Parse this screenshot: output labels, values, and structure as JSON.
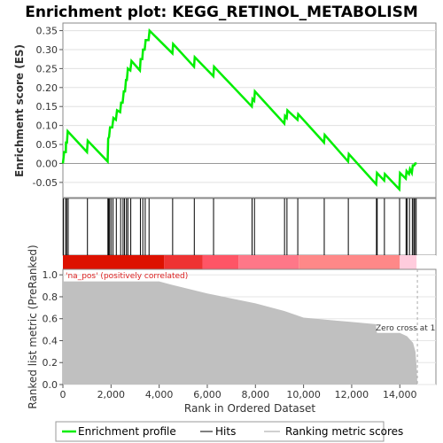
{
  "chart_data": {
    "type": "line",
    "title": "Enrichment plot: KEGG_RETINOL_METABOLISM",
    "es_panel": {
      "ylabel": "Enrichment score (ES)",
      "ylim": [
        -0.09,
        0.37
      ],
      "yticks": [
        "-0.05",
        "0.00",
        "0.05",
        "0.10",
        "0.15",
        "0.20",
        "0.25",
        "0.30",
        "0.35"
      ],
      "line_color": "#00ee00",
      "points": [
        [
          0,
          0.0
        ],
        [
          50,
          0.03
        ],
        [
          120,
          0.03
        ],
        [
          130,
          0.055
        ],
        [
          170,
          0.055
        ],
        [
          200,
          0.085
        ],
        [
          1000,
          0.03
        ],
        [
          1030,
          0.06
        ],
        [
          1860,
          0.005
        ],
        [
          1880,
          0.065
        ],
        [
          1920,
          0.07
        ],
        [
          1960,
          0.095
        ],
        [
          2050,
          0.095
        ],
        [
          2100,
          0.12
        ],
        [
          2200,
          0.115
        ],
        [
          2250,
          0.14
        ],
        [
          2380,
          0.135
        ],
        [
          2420,
          0.16
        ],
        [
          2480,
          0.16
        ],
        [
          2530,
          0.19
        ],
        [
          2580,
          0.19
        ],
        [
          2620,
          0.22
        ],
        [
          2660,
          0.22
        ],
        [
          2700,
          0.25
        ],
        [
          2800,
          0.245
        ],
        [
          2850,
          0.27
        ],
        [
          3200,
          0.245
        ],
        [
          3230,
          0.275
        ],
        [
          3300,
          0.275
        ],
        [
          3330,
          0.3
        ],
        [
          3400,
          0.3
        ],
        [
          3440,
          0.325
        ],
        [
          3560,
          0.325
        ],
        [
          3600,
          0.35
        ],
        [
          4550,
          0.29
        ],
        [
          4580,
          0.315
        ],
        [
          5450,
          0.255
        ],
        [
          5480,
          0.28
        ],
        [
          6250,
          0.23
        ],
        [
          6280,
          0.255
        ],
        [
          7850,
          0.15
        ],
        [
          7880,
          0.17
        ],
        [
          7950,
          0.165
        ],
        [
          7980,
          0.19
        ],
        [
          9200,
          0.105
        ],
        [
          9230,
          0.125
        ],
        [
          9300,
          0.12
        ],
        [
          9330,
          0.14
        ],
        [
          9750,
          0.115
        ],
        [
          9780,
          0.13
        ],
        [
          10850,
          0.055
        ],
        [
          10880,
          0.075
        ],
        [
          11850,
          0.005
        ],
        [
          11880,
          0.025
        ],
        [
          13020,
          -0.055
        ],
        [
          13050,
          -0.025
        ],
        [
          13350,
          -0.045
        ],
        [
          13380,
          -0.028
        ],
        [
          13980,
          -0.068
        ],
        [
          14010,
          -0.025
        ],
        [
          14250,
          -0.04
        ],
        [
          14280,
          -0.02
        ],
        [
          14380,
          -0.028
        ],
        [
          14420,
          -0.015
        ],
        [
          14500,
          -0.025
        ],
        [
          14540,
          -0.005
        ],
        [
          14600,
          -0.005
        ],
        [
          14640,
          0.0
        ],
        [
          14700,
          0.0
        ]
      ]
    },
    "hits": [
      20,
      110,
      160,
      220,
      1020,
      1870,
      1900,
      1940,
      2000,
      2080,
      2220,
      2400,
      2500,
      2560,
      2640,
      2700,
      2820,
      3220,
      3320,
      3420,
      3580,
      4560,
      5460,
      6260,
      7860,
      7960,
      9210,
      9310,
      9760,
      10860,
      11860,
      13030,
      13060,
      13360,
      13990,
      14260,
      14300,
      14400,
      14520,
      14580,
      14620,
      14680
    ],
    "ranked_panel": {
      "ylabel": "Ranked list metric (PreRanked)",
      "xlabel": "Rank in Ordered Dataset",
      "ylim": [
        0.0,
        1.05
      ],
      "yticks": [
        "0.0",
        "0.2",
        "0.4",
        "0.6",
        "0.8",
        "1.0"
      ],
      "xlim": [
        0,
        15500
      ],
      "xticks": [
        "0",
        "2,000",
        "4,000",
        "6,000",
        "8,000",
        "10,000",
        "12,000",
        "14,000"
      ],
      "fill_color": "#c0c0c0",
      "curve": [
        [
          0,
          0.94
        ],
        [
          4000,
          0.94
        ],
        [
          4500,
          0.91
        ],
        [
          6000,
          0.83
        ],
        [
          8000,
          0.74
        ],
        [
          9200,
          0.67
        ],
        [
          10000,
          0.61
        ],
        [
          11000,
          0.59
        ],
        [
          12000,
          0.57
        ],
        [
          13000,
          0.55
        ],
        [
          13050,
          0.47
        ],
        [
          14000,
          0.47
        ],
        [
          14300,
          0.44
        ],
        [
          14550,
          0.38
        ],
        [
          14650,
          0.3
        ],
        [
          14700,
          0.15
        ],
        [
          14730,
          0.0
        ]
      ],
      "annotation_pos": "'na_pos' (positively correlated)",
      "annotation_zero": "Zero cross at 1"
    },
    "legend": {
      "items": [
        {
          "label": "Enrichment profile",
          "color": "#00ee00"
        },
        {
          "label": "Hits",
          "color": "#000000"
        },
        {
          "label": "Ranking metric scores",
          "color": "#c0c0c0"
        }
      ]
    }
  }
}
